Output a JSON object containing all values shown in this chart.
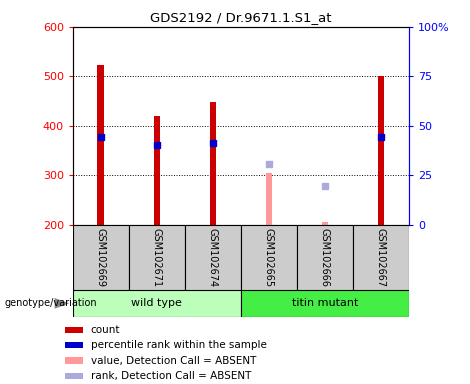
{
  "title": "GDS2192 / Dr.9671.1.S1_at",
  "samples": [
    "GSM102669",
    "GSM102671",
    "GSM102674",
    "GSM102665",
    "GSM102666",
    "GSM102667"
  ],
  "count_values": [
    522,
    420,
    448,
    null,
    null,
    500
  ],
  "count_absent_values": [
    null,
    null,
    null,
    305,
    205,
    null
  ],
  "rank_values": [
    378,
    362,
    366,
    null,
    null,
    378
  ],
  "rank_absent_values": [
    null,
    null,
    null,
    323,
    278,
    null
  ],
  "ylim": [
    200,
    600
  ],
  "yticks": [
    200,
    300,
    400,
    500,
    600
  ],
  "y2lim": [
    0,
    100
  ],
  "y2ticks": [
    0,
    25,
    50,
    75,
    100
  ],
  "bar_width": 0.12,
  "bar_color": "#cc0000",
  "rank_color": "#0000cc",
  "absent_val_color": "#ff9999",
  "absent_rank_color": "#aaaadd",
  "wt_color": "#bbffbb",
  "mut_color": "#44ee44",
  "gray_box_color": "#cccccc",
  "legend_items": [
    {
      "label": "count",
      "color": "#cc0000"
    },
    {
      "label": "percentile rank within the sample",
      "color": "#0000cc"
    },
    {
      "label": "value, Detection Call = ABSENT",
      "color": "#ff9999"
    },
    {
      "label": "rank, Detection Call = ABSENT",
      "color": "#aaaadd"
    }
  ]
}
